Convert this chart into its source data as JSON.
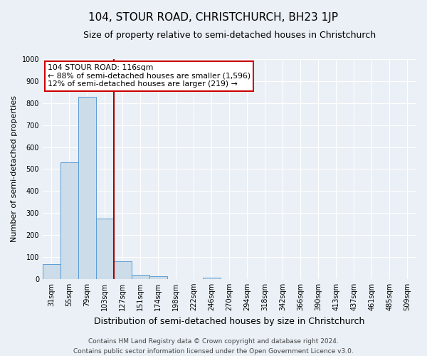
{
  "title": "104, STOUR ROAD, CHRISTCHURCH, BH23 1JP",
  "subtitle": "Size of property relative to semi-detached houses in Christchurch",
  "xlabel": "Distribution of semi-detached houses by size in Christchurch",
  "ylabel": "Number of semi-detached properties",
  "footer_line1": "Contains HM Land Registry data © Crown copyright and database right 2024.",
  "footer_line2": "Contains public sector information licensed under the Open Government Licence v3.0.",
  "bar_labels": [
    "31sqm",
    "55sqm",
    "79sqm",
    "103sqm",
    "127sqm",
    "151sqm",
    "174sqm",
    "198sqm",
    "222sqm",
    "246sqm",
    "270sqm",
    "294sqm",
    "318sqm",
    "342sqm",
    "366sqm",
    "390sqm",
    "413sqm",
    "437sqm",
    "461sqm",
    "485sqm",
    "509sqm"
  ],
  "bar_values": [
    67,
    530,
    830,
    275,
    80,
    20,
    12,
    0,
    0,
    7,
    0,
    0,
    0,
    0,
    0,
    0,
    0,
    0,
    0,
    0,
    0
  ],
  "bar_color": "#ccdce8",
  "bar_edge_color": "#5b9bd5",
  "ylim": [
    0,
    1000
  ],
  "yticks": [
    0,
    100,
    200,
    300,
    400,
    500,
    600,
    700,
    800,
    900,
    1000
  ],
  "annotation_title": "104 STOUR ROAD: 116sqm",
  "annotation_line1": "← 88% of semi-detached houses are smaller (1,596)",
  "annotation_line2": "12% of semi-detached houses are larger (219) →",
  "annotation_box_color": "#ffffff",
  "annotation_box_edge": "#cc0000",
  "vline_color": "#aa0000",
  "bg_color": "#eaf0f6",
  "grid_color": "#ffffff",
  "title_fontsize": 11,
  "subtitle_fontsize": 9,
  "ylabel_fontsize": 8,
  "xlabel_fontsize": 9,
  "tick_fontsize": 7,
  "footer_fontsize": 6.5
}
